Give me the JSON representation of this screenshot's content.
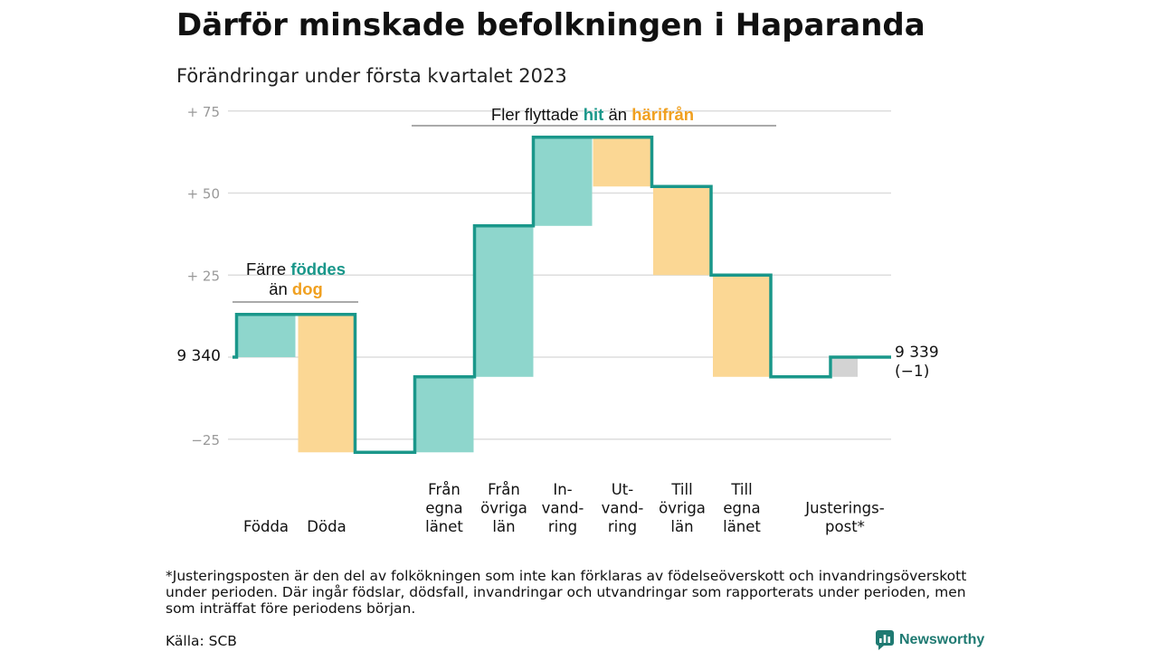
{
  "title": "Därför minskade befolkningen i Haparanda",
  "subtitle": "Förändringar under första kvartalet 2023",
  "colors": {
    "teal_line": "#1a978a",
    "teal_fill": "#8ed6cc",
    "orange_fill": "#fbd794",
    "orange_text": "#f0a020",
    "gray_fill": "#d3d3d3",
    "grid": "#dddddd",
    "tick_text": "#999999"
  },
  "annotations": {
    "fodda_doda": {
      "line1_pre": "Färre ",
      "line1_hl": "föddes",
      "line2_pre": "än ",
      "line2_hl": "dog"
    },
    "flyttade": {
      "pre": "Fler flyttade ",
      "hit": "hit",
      "mid": " än ",
      "harifran": "härifrån"
    }
  },
  "start_label": "9 340",
  "end_label": {
    "value": "9 339",
    "change": "(−1)"
  },
  "footnote": "*Justeringsposten är den del av folkökningen som inte kan förklaras av födelseöverskott och invandringsöverskott under perioden. Där ingår födslar, dödsfall, invandringar och utvandringar som rapporterats under perioden, men som inträffat före periodens början.",
  "source": "Källa: SCB",
  "logo": {
    "text": "Newsworthy",
    "icon": "newsworthy-logo-icon"
  },
  "chart_data": {
    "type": "bar",
    "subtype": "waterfall",
    "baseline_population": 9340,
    "end_population": 9339,
    "net_change": -1,
    "ylim": [
      -30,
      78
    ],
    "yticks": [
      {
        "value": 75,
        "label": "+ 75"
      },
      {
        "value": 50,
        "label": "+ 50"
      },
      {
        "value": 25,
        "label": "+ 25"
      },
      {
        "value": -25,
        "label": "−25"
      }
    ],
    "categories": [
      {
        "label": [
          "Födda"
        ],
        "change": 13,
        "kind": "plus"
      },
      {
        "label": [
          "Döda"
        ],
        "change": -42,
        "kind": "minus"
      },
      {
        "label": [
          "Från",
          "egna",
          "länet"
        ],
        "change": 23,
        "kind": "plus"
      },
      {
        "label": [
          "Från",
          "övriga",
          "län"
        ],
        "change": 46,
        "kind": "plus"
      },
      {
        "label": [
          "In-",
          "vand-",
          "ring"
        ],
        "change": 27,
        "kind": "plus"
      },
      {
        "label": [
          "Ut-",
          "vand-",
          "ring"
        ],
        "change": -15,
        "kind": "minus"
      },
      {
        "label": [
          "Till",
          "övriga",
          "län"
        ],
        "change": -27,
        "kind": "minus"
      },
      {
        "label": [
          "Till",
          "egna",
          "länet"
        ],
        "change": -31,
        "kind": "minus"
      },
      {
        "label": [
          "Justerings-",
          "post*"
        ],
        "change": 6,
        "kind": "adjustment"
      }
    ]
  }
}
